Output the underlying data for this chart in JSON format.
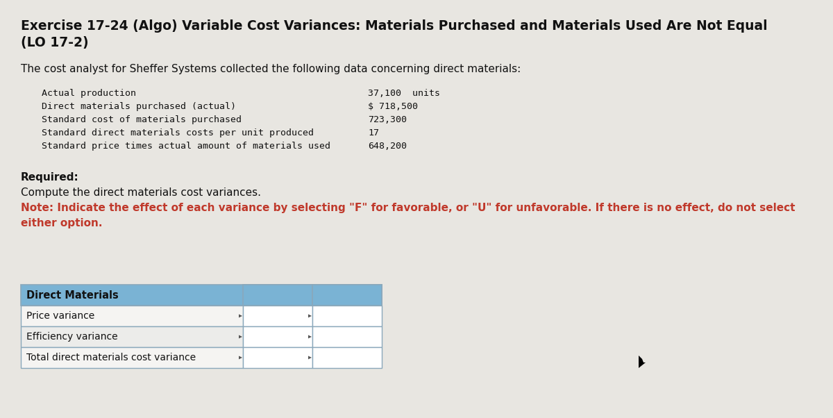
{
  "title_line1": "Exercise 17-24 (Algo) Variable Cost Variances: Materials Purchased and Materials Used Are Not Equal",
  "title_line2": "(LO 17-2)",
  "intro_text": "The cost analyst for Sheffer Systems collected the following data concerning direct materials:",
  "data_labels": [
    "Actual production",
    "Direct materials purchased (actual)",
    "Standard cost of materials purchased",
    "Standard direct materials costs per unit produced",
    "Standard price times actual amount of materials used"
  ],
  "data_values": [
    "37,100  units",
    "$ 718,500",
    "723,300",
    "17",
    "648,200"
  ],
  "required_text": "Required:",
  "compute_text": "Compute the direct materials cost variances.",
  "note_text": "Note: Indicate the effect of each variance by selecting \"F\" for favorable, or \"U\" for unfavorable. If there is no effect, do not select either option.",
  "note_text2": "either option.",
  "table_header": "Direct Materials",
  "table_rows": [
    "Price variance",
    "Efficiency variance",
    "Total direct materials cost variance"
  ],
  "bg_color": "#e8e6e1",
  "header_bg": "#7ab3d4",
  "cell_bg_light": "#f5f4f2",
  "cell_bg_mid": "#ececea",
  "table_border": "#8aa8bb",
  "note_color": "#c0392b",
  "title_color": "#111111",
  "text_color": "#111111",
  "mono_color": "#111111",
  "white": "#ffffff"
}
